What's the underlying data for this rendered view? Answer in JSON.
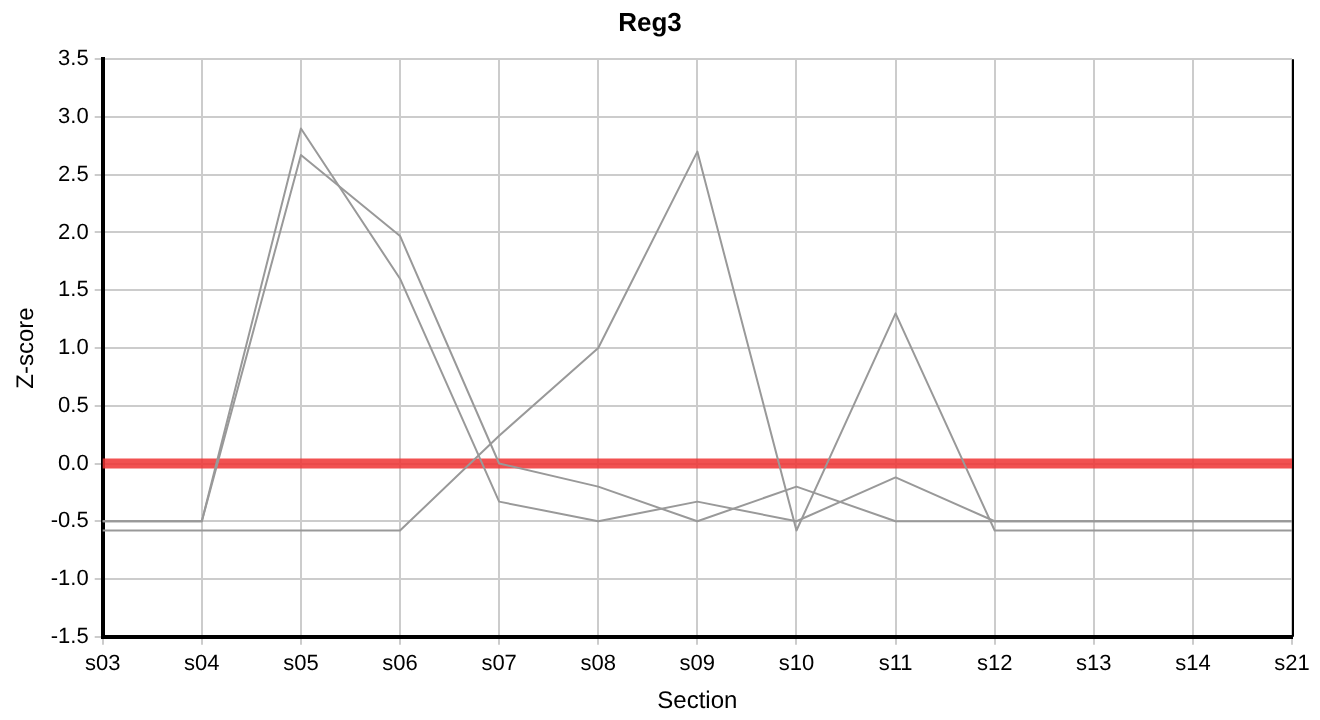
{
  "chart_data": {
    "type": "line",
    "title": "Reg3",
    "xlabel": "Section",
    "ylabel": "Z-score",
    "categories": [
      "s03",
      "s04",
      "s05",
      "s06",
      "s07",
      "s08",
      "s09",
      "s10",
      "s11",
      "s12",
      "s13",
      "s14",
      "s21"
    ],
    "series": [
      {
        "color": "#999999",
        "values": [
          -0.5,
          -0.5,
          2.9,
          1.6,
          -0.33,
          -0.5,
          -0.33,
          -0.5,
          -0.12,
          -0.5,
          -0.5,
          -0.5,
          -0.5
        ]
      },
      {
        "color": "#999999",
        "values": [
          -0.5,
          -0.5,
          2.67,
          1.97,
          0,
          -0.2,
          -0.5,
          -0.2,
          -0.5,
          -0.5,
          -0.5,
          -0.5,
          -0.5
        ]
      },
      {
        "color": "#999999",
        "values": [
          -0.58,
          -0.58,
          -0.58,
          -0.58,
          0.24,
          1.0,
          2.7,
          -0.58,
          1.3,
          -0.58,
          -0.58,
          -0.58,
          -0.58
        ]
      }
    ],
    "ylim": [
      -1.5,
      3.5
    ],
    "yticks": [
      {
        "value": -1.5,
        "label": "-1.5"
      },
      {
        "value": -1,
        "label": "-1.0"
      },
      {
        "value": -0.5,
        "label": "-0.5"
      },
      {
        "value": 0,
        "label": "0.0"
      },
      {
        "value": 0.5,
        "label": "0.5"
      },
      {
        "value": 1,
        "label": "1.0"
      },
      {
        "value": 1.5,
        "label": "1.5"
      },
      {
        "value": 2,
        "label": "2.0"
      },
      {
        "value": 2.5,
        "label": "2.5"
      },
      {
        "value": 3,
        "label": "3.0"
      },
      {
        "value": 3.5,
        "label": "3.5"
      }
    ],
    "ref_lines": [
      {
        "axis": "y",
        "value": 0,
        "color": "#ee3333"
      }
    ],
    "grid": true,
    "legend": false,
    "marker": "none",
    "line_style": "solid"
  }
}
